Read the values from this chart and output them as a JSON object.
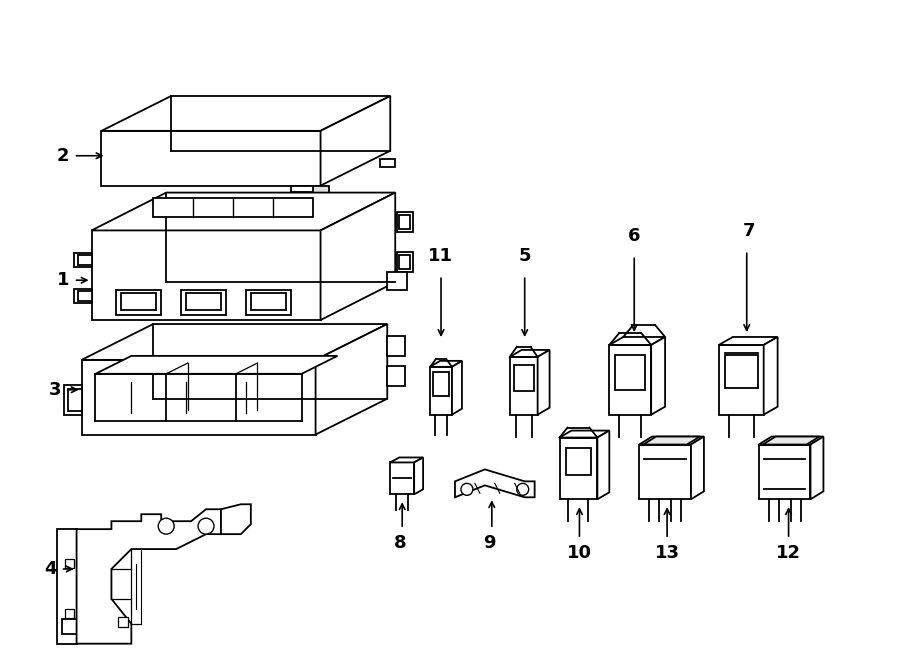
{
  "title": "",
  "background_color": "#ffffff",
  "line_color": "#000000",
  "fig_width": 9.0,
  "fig_height": 6.61,
  "dpi": 100
}
